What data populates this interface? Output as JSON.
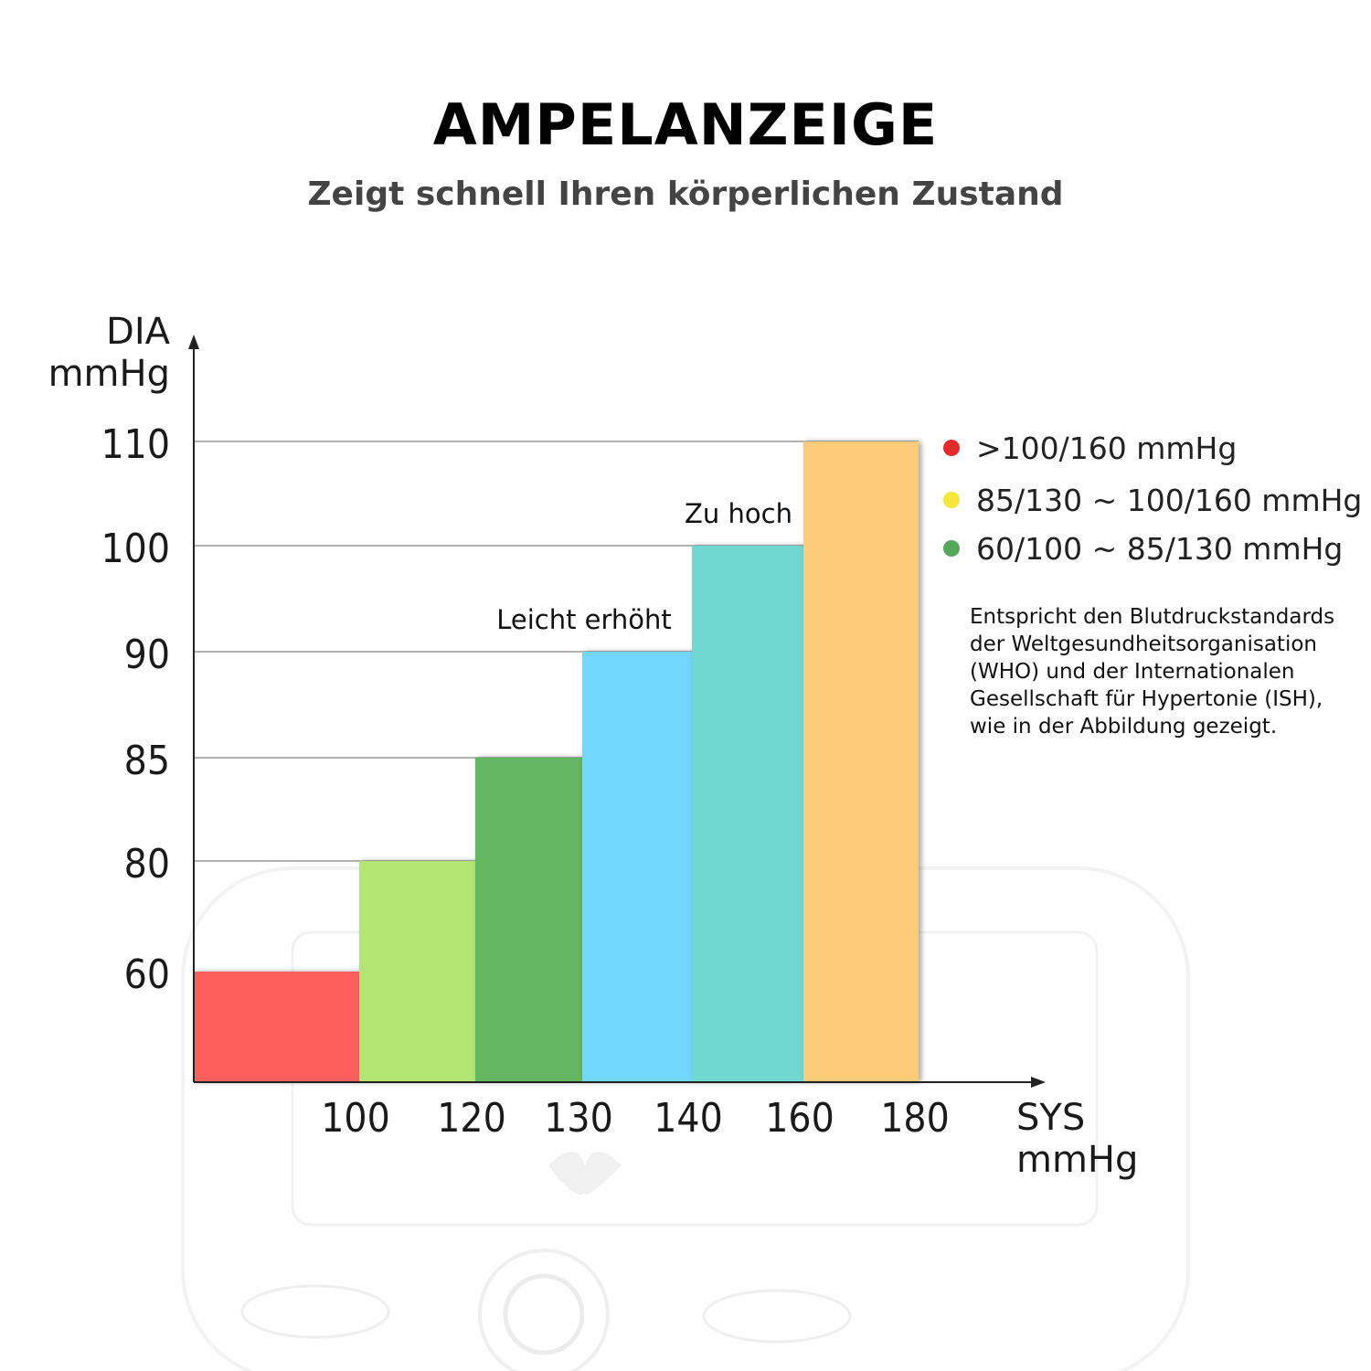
{
  "header": {
    "title": "AMPELANZEIGE",
    "subtitle": "Zeigt schnell Ihren körperlichen Zustand"
  },
  "note": "Entspricht den Blutdruckstandards der Weltgesundheitsorganisation (WHO) und der Internationalen Gesellschaft für Hypertonie (ISH), wie in der Abbildung gezeigt.",
  "chart_data": {
    "type": "bar",
    "title": "",
    "xlabel": [
      "SYS",
      "mmHg"
    ],
    "ylabel": [
      "DIA",
      "mmHg"
    ],
    "x_ticks": [
      "100",
      "120",
      "130",
      "140",
      "160",
      "180"
    ],
    "y_ticks": [
      "60",
      "80",
      "85",
      "90",
      "100",
      "110"
    ],
    "bars": [
      {
        "sys_to": 100,
        "dia": 60,
        "color": "#fe5f5d"
      },
      {
        "sys_to": 120,
        "dia": 80,
        "color": "#b1e672"
      },
      {
        "sys_to": 130,
        "dia": 85,
        "color": "#64b662"
      },
      {
        "sys_to": 140,
        "dia": 90,
        "color": "#71d7fc"
      },
      {
        "sys_to": 160,
        "dia": 100,
        "color": "#6fd7d1"
      },
      {
        "sys_to": 180,
        "dia": 110,
        "color": "#fecb79"
      }
    ],
    "annotations": [
      {
        "text": "Leicht erhöht",
        "bar_index": 3
      },
      {
        "text": "Zu hoch",
        "bar_index": 4
      }
    ],
    "legend": [
      {
        "color": "#e52a2a",
        "label": ">100/160 mmHg"
      },
      {
        "color": "#f5e63a",
        "label": "85/130 ~ 100/160 mmHg"
      },
      {
        "color": "#55a85a",
        "label": "60/100 ~  85/130 mmHg"
      }
    ],
    "legend_position": "right",
    "grid": true
  }
}
